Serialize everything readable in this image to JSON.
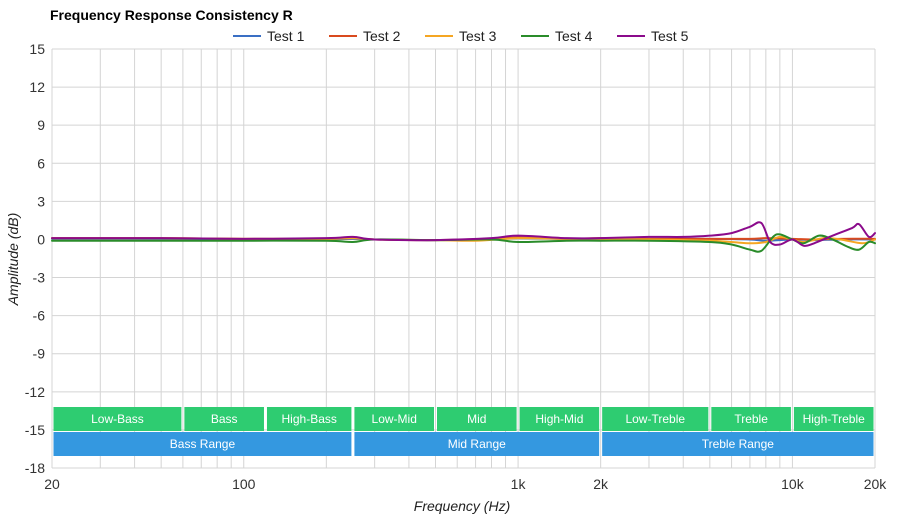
{
  "chart_data": {
    "type": "line",
    "title": "Frequency Response Consistency R",
    "xlabel": "Frequency (Hz)",
    "ylabel": "Amplitude (dB)",
    "x_scale": "log",
    "xlim": [
      20,
      20000
    ],
    "ylim": [
      -18,
      15
    ],
    "grid": true,
    "legend_position": "top-center",
    "y_ticks": [
      15,
      12,
      9,
      6,
      3,
      0,
      -3,
      -6,
      -9,
      -12,
      -15,
      -18
    ],
    "y_tick_labels": [
      "15",
      "12",
      "9",
      "6",
      "3",
      "0",
      "-3",
      "-6",
      "-9",
      "-12",
      "-15",
      "-18"
    ],
    "x_ticks": [
      20,
      100,
      1000,
      2000,
      10000,
      20000
    ],
    "x_tick_labels": [
      "20",
      "100",
      "1k",
      "2k",
      "10k",
      "20k"
    ],
    "minor_x_gridlines": [
      30,
      40,
      50,
      60,
      70,
      80,
      90,
      200,
      300,
      400,
      500,
      600,
      700,
      800,
      900,
      3000,
      4000,
      5000,
      6000,
      7000,
      8000,
      9000
    ],
    "series": [
      {
        "name": "Test 1",
        "color": "#3a6fc4",
        "points": [
          [
            20,
            0.05
          ],
          [
            50,
            0.05
          ],
          [
            100,
            0.02
          ],
          [
            200,
            0.0
          ],
          [
            250,
            0.05
          ],
          [
            300,
            0.0
          ],
          [
            500,
            -0.05
          ],
          [
            800,
            0.05
          ],
          [
            1000,
            0.1
          ],
          [
            1500,
            0.05
          ],
          [
            2000,
            0.05
          ],
          [
            3000,
            0.05
          ],
          [
            5000,
            0.05
          ],
          [
            7000,
            0.0
          ],
          [
            8000,
            -0.1
          ],
          [
            10000,
            0.0
          ],
          [
            12000,
            -0.05
          ],
          [
            15000,
            0.0
          ],
          [
            20000,
            0.0
          ]
        ]
      },
      {
        "name": "Test 2",
        "color": "#d94a1e",
        "points": [
          [
            20,
            0.1
          ],
          [
            50,
            0.1
          ],
          [
            100,
            0.05
          ],
          [
            200,
            0.05
          ],
          [
            250,
            0.1
          ],
          [
            300,
            0.0
          ],
          [
            500,
            -0.05
          ],
          [
            800,
            0.05
          ],
          [
            1000,
            0.15
          ],
          [
            1500,
            0.05
          ],
          [
            2000,
            0.1
          ],
          [
            3000,
            0.05
          ],
          [
            5000,
            0.05
          ],
          [
            7000,
            0.05
          ],
          [
            8000,
            0.1
          ],
          [
            10000,
            0.05
          ],
          [
            12000,
            0.0
          ],
          [
            15000,
            0.05
          ],
          [
            20000,
            0.05
          ]
        ]
      },
      {
        "name": "Test 3",
        "color": "#f5a623",
        "points": [
          [
            20,
            0.1
          ],
          [
            50,
            0.1
          ],
          [
            100,
            0.05
          ],
          [
            200,
            0.05
          ],
          [
            250,
            0.1
          ],
          [
            300,
            0.0
          ],
          [
            500,
            -0.05
          ],
          [
            700,
            -0.1
          ],
          [
            1000,
            0.1
          ],
          [
            1500,
            0.05
          ],
          [
            2000,
            0.05
          ],
          [
            3000,
            0.0
          ],
          [
            5000,
            -0.1
          ],
          [
            6000,
            -0.2
          ],
          [
            7000,
            -0.3
          ],
          [
            8000,
            -0.2
          ],
          [
            9000,
            0.2
          ],
          [
            10000,
            0.0
          ],
          [
            11000,
            -0.2
          ],
          [
            13000,
            0.1
          ],
          [
            15000,
            0.0
          ],
          [
            18000,
            -0.3
          ],
          [
            20000,
            0.0
          ]
        ]
      },
      {
        "name": "Test 4",
        "color": "#2a8c2a",
        "points": [
          [
            20,
            -0.1
          ],
          [
            50,
            -0.1
          ],
          [
            100,
            -0.1
          ],
          [
            200,
            -0.1
          ],
          [
            250,
            -0.2
          ],
          [
            300,
            0.0
          ],
          [
            500,
            -0.05
          ],
          [
            800,
            0.0
          ],
          [
            1000,
            -0.2
          ],
          [
            1500,
            -0.1
          ],
          [
            2000,
            -0.1
          ],
          [
            3000,
            -0.1
          ],
          [
            5000,
            -0.2
          ],
          [
            6000,
            -0.4
          ],
          [
            7000,
            -0.8
          ],
          [
            7700,
            -0.9
          ],
          [
            8500,
            0.2
          ],
          [
            9000,
            0.4
          ],
          [
            10000,
            0.0
          ],
          [
            11000,
            -0.3
          ],
          [
            12500,
            0.3
          ],
          [
            14000,
            0.0
          ],
          [
            16000,
            -0.6
          ],
          [
            17500,
            -0.8
          ],
          [
            19000,
            -0.2
          ],
          [
            20000,
            -0.3
          ]
        ]
      },
      {
        "name": "Test 5",
        "color": "#8b0a8b",
        "points": [
          [
            20,
            0.1
          ],
          [
            50,
            0.1
          ],
          [
            100,
            0.05
          ],
          [
            200,
            0.1
          ],
          [
            250,
            0.2
          ],
          [
            300,
            0.0
          ],
          [
            500,
            -0.05
          ],
          [
            800,
            0.1
          ],
          [
            1000,
            0.3
          ],
          [
            1500,
            0.1
          ],
          [
            2000,
            0.1
          ],
          [
            3000,
            0.2
          ],
          [
            4000,
            0.2
          ],
          [
            5000,
            0.3
          ],
          [
            6000,
            0.5
          ],
          [
            7000,
            1.0
          ],
          [
            7700,
            1.3
          ],
          [
            8300,
            -0.2
          ],
          [
            9000,
            -0.4
          ],
          [
            10000,
            0.0
          ],
          [
            11000,
            -0.5
          ],
          [
            12000,
            -0.3
          ],
          [
            14000,
            0.3
          ],
          [
            16500,
            0.9
          ],
          [
            17500,
            1.2
          ],
          [
            19000,
            0.2
          ],
          [
            20000,
            0.5
          ]
        ]
      }
    ],
    "bands": [
      {
        "row": "top",
        "label": "Low-Bass",
        "from": 20,
        "to": 60,
        "color": "#2ecc71"
      },
      {
        "row": "top",
        "label": "Bass",
        "from": 60,
        "to": 120,
        "color": "#2ecc71"
      },
      {
        "row": "top",
        "label": "High-Bass",
        "from": 120,
        "to": 250,
        "color": "#2ecc71"
      },
      {
        "row": "top",
        "label": "Low-Mid",
        "from": 250,
        "to": 500,
        "color": "#2ecc71"
      },
      {
        "row": "top",
        "label": "Mid",
        "from": 500,
        "to": 1000,
        "color": "#2ecc71"
      },
      {
        "row": "top",
        "label": "High-Mid",
        "from": 1000,
        "to": 2000,
        "color": "#2ecc71"
      },
      {
        "row": "top",
        "label": "Low-Treble",
        "from": 2000,
        "to": 5000,
        "color": "#2ecc71"
      },
      {
        "row": "top",
        "label": "Treble",
        "from": 5000,
        "to": 10000,
        "color": "#2ecc71"
      },
      {
        "row": "top",
        "label": "High-Treble",
        "from": 10000,
        "to": 20000,
        "color": "#2ecc71"
      },
      {
        "row": "bottom",
        "label": "Bass Range",
        "from": 20,
        "to": 250,
        "color": "#3498e0"
      },
      {
        "row": "bottom",
        "label": "Mid Range",
        "from": 250,
        "to": 2000,
        "color": "#3498e0"
      },
      {
        "row": "bottom",
        "label": "Treble Range",
        "from": 2000,
        "to": 20000,
        "color": "#3498e0"
      }
    ]
  }
}
